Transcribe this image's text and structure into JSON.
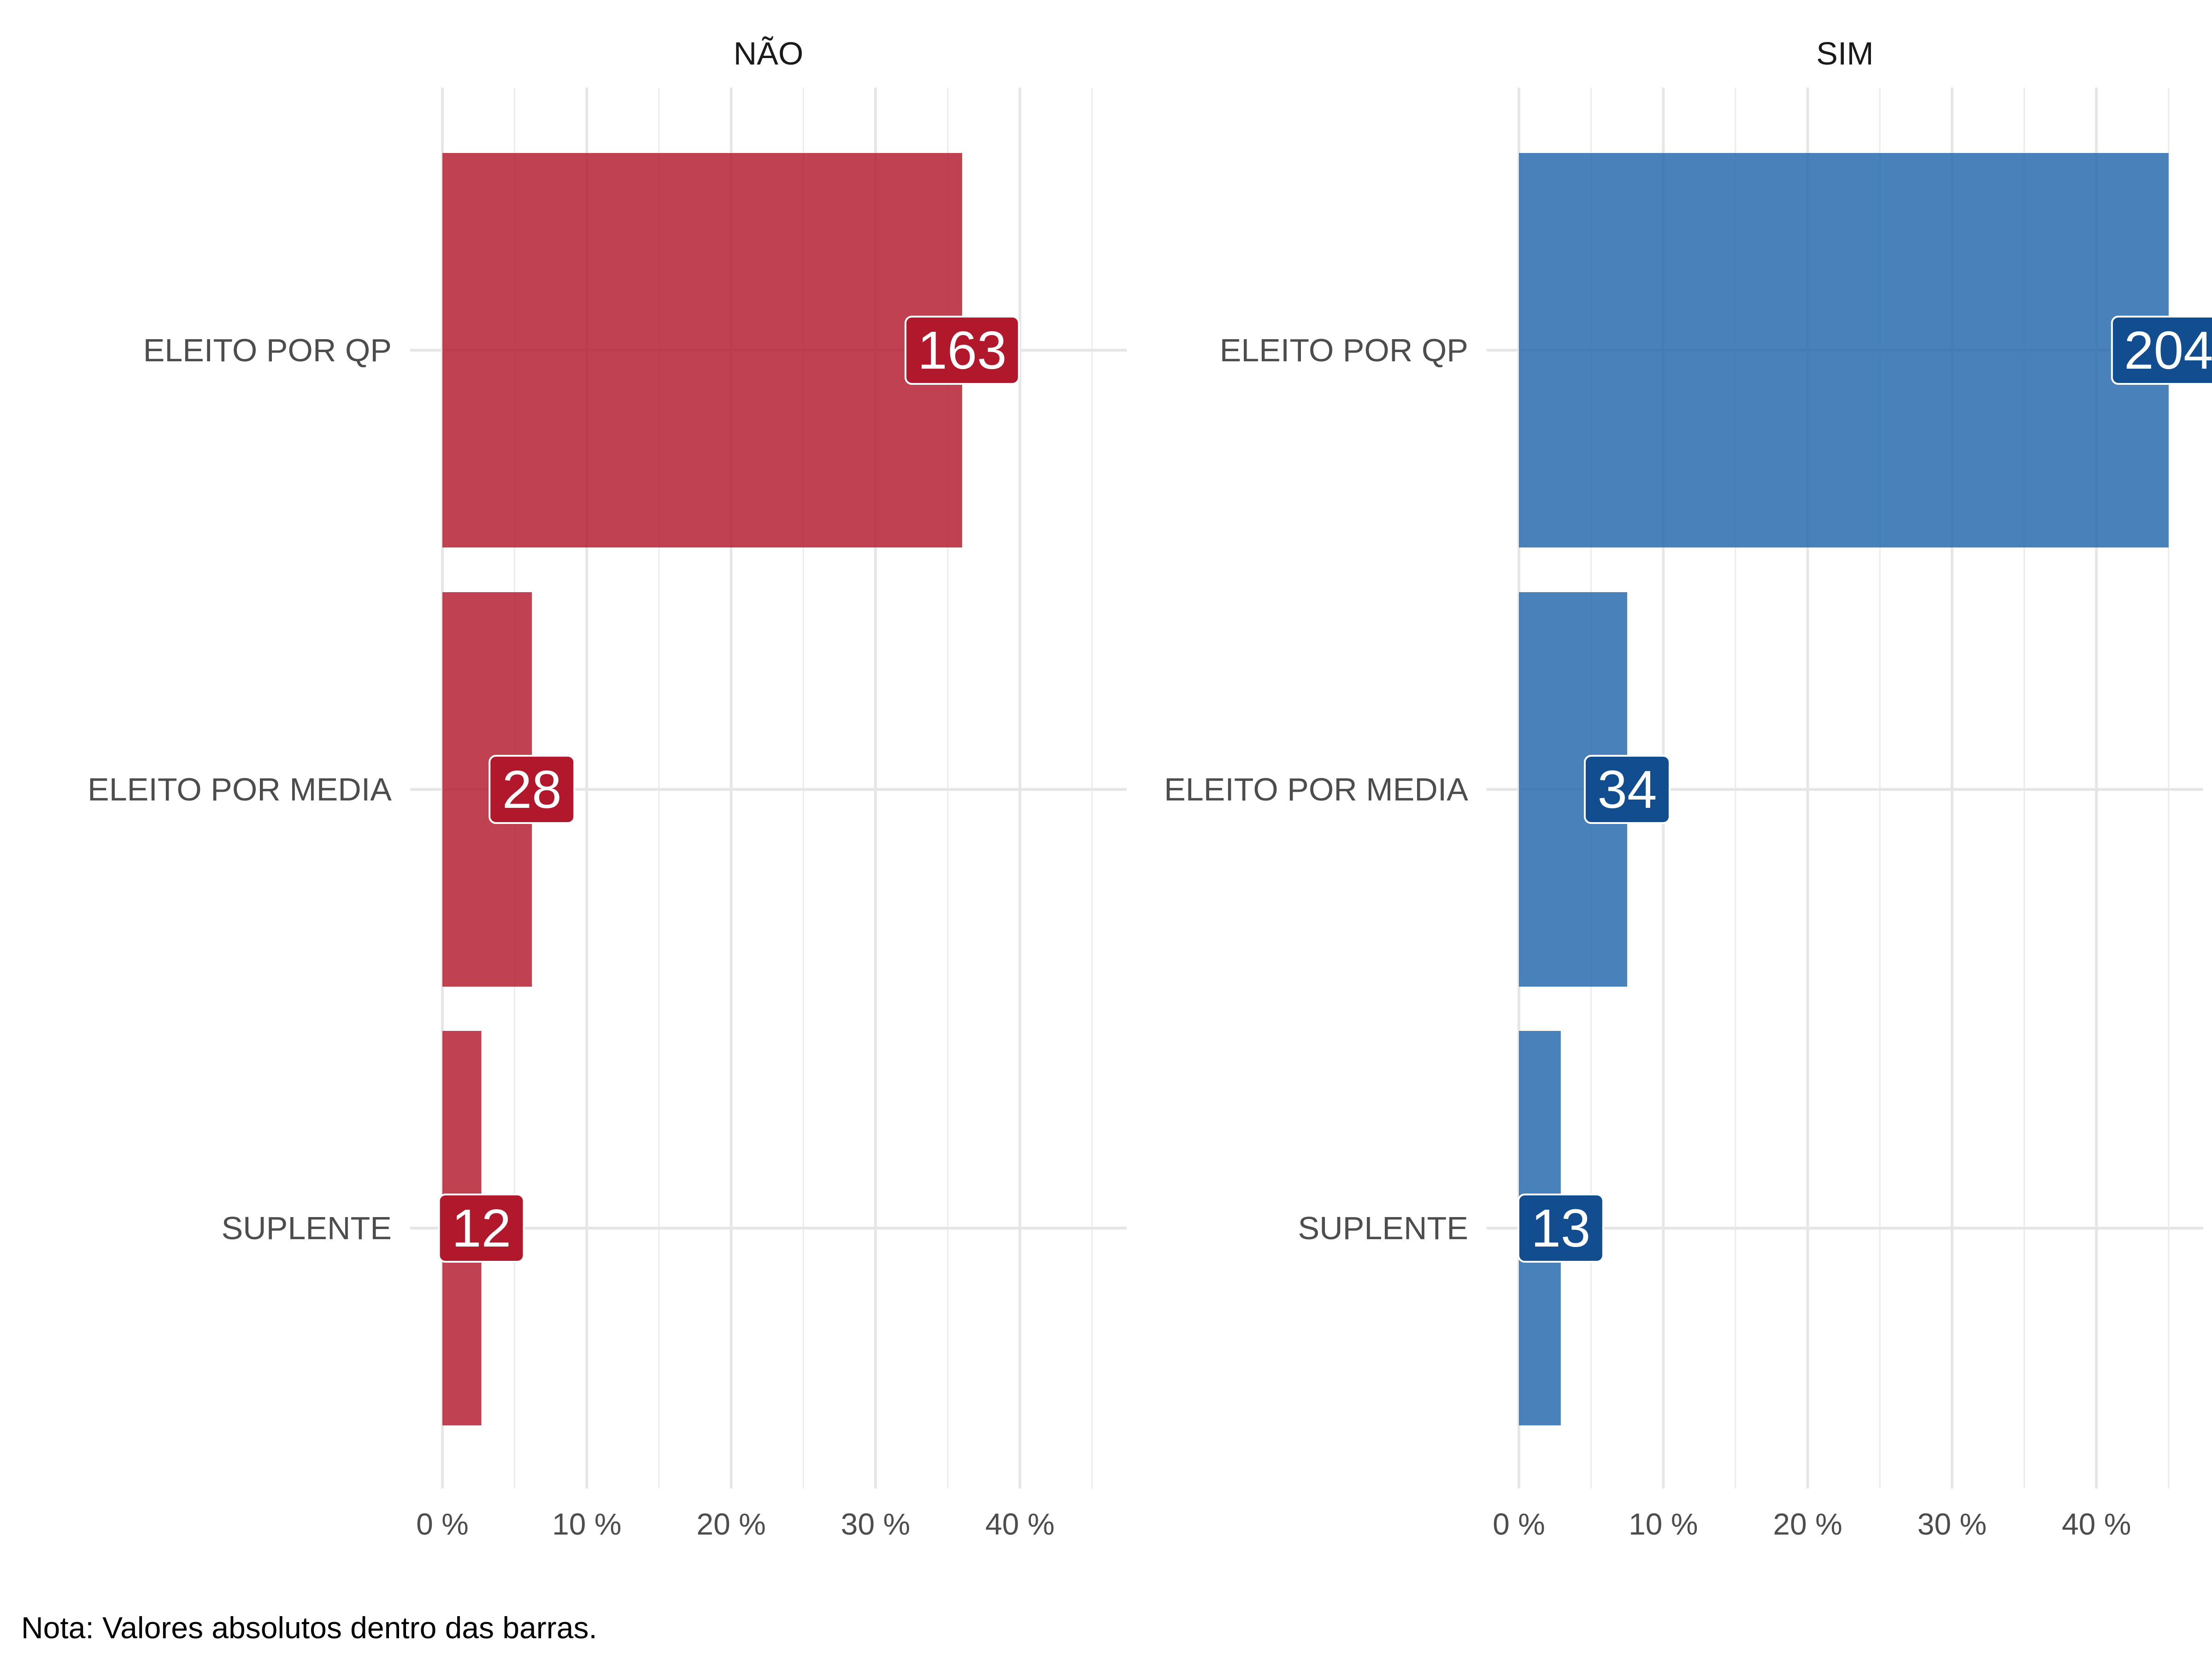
{
  "chart_data": {
    "type": "bar",
    "orientation": "horizontal",
    "categories": [
      "ELEITO POR QP",
      "ELEITO POR MEDIA",
      "SUPLENTE"
    ],
    "xlim": [
      0,
      47
    ],
    "x_ticks": [
      0,
      10,
      20,
      30,
      40
    ],
    "x_tick_labels": [
      "0 %",
      "10 %",
      "20 %",
      "30 %",
      "40 %"
    ],
    "panels": [
      {
        "title": "NÃO",
        "color": "#B2182B",
        "label_color": "#B2182B",
        "values": [
          36,
          6.2,
          2.7
        ],
        "labels": [
          "163",
          "28",
          "12"
        ]
      },
      {
        "title": "SIM",
        "color": "#2166AC",
        "label_color": "#124E8F",
        "values": [
          45,
          7.5,
          2.9
        ],
        "labels": [
          "204",
          "34",
          "13"
        ]
      }
    ],
    "grid": true,
    "legend": "none"
  },
  "note": "Nota: Valores absolutos dentro das barras."
}
